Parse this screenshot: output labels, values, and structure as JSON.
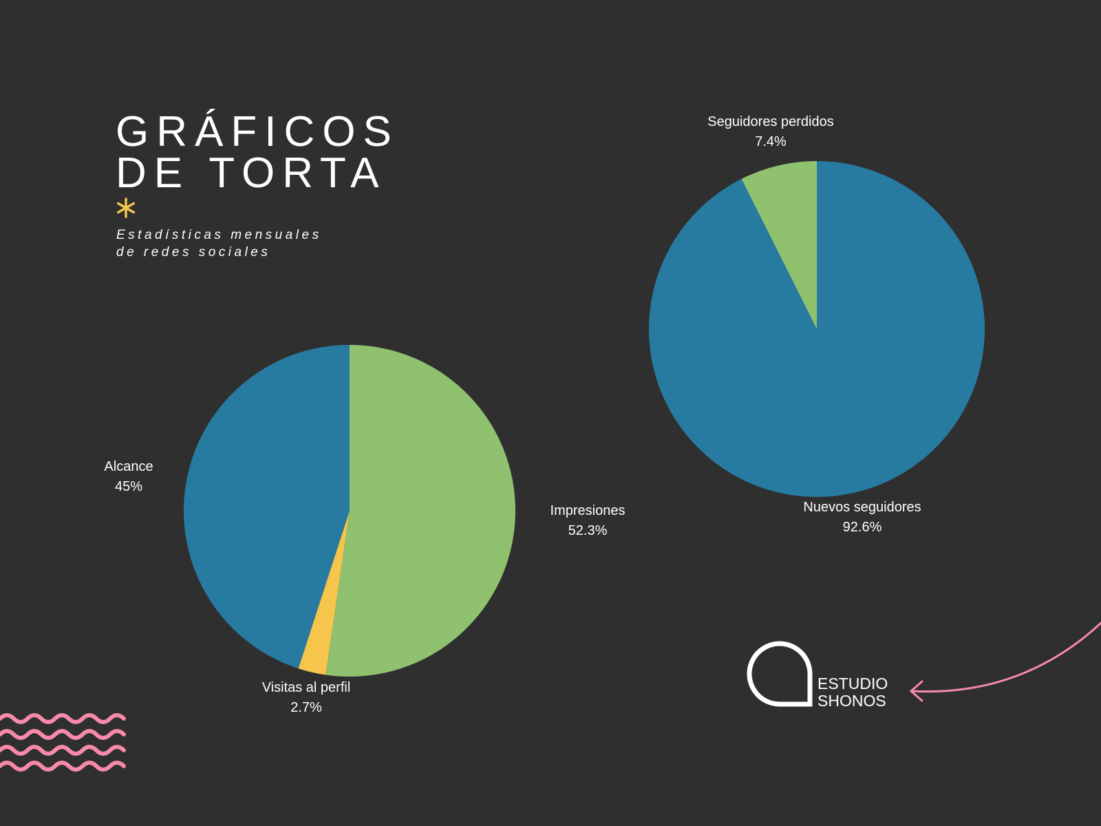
{
  "header": {
    "title_lines": [
      "GRÁFICOS",
      "DE TORTA"
    ],
    "subtitle_lines": [
      "Estadísticas mensuales",
      "de redes sociales"
    ]
  },
  "chart_data": [
    {
      "type": "pie",
      "categories": [
        "Impresiones",
        "Visitas al perfil",
        "Alcance"
      ],
      "values": [
        52.3,
        2.7,
        45
      ],
      "value_labels": [
        "52.3%",
        "2.7%",
        "45%"
      ],
      "colors": [
        "#90c16e",
        "#f5c54c",
        "#277ba0"
      ]
    },
    {
      "type": "pie",
      "categories": [
        "Nuevos seguidores",
        "Seguidores perdidos"
      ],
      "values": [
        92.6,
        7.4
      ],
      "value_labels": [
        "92.6%",
        "7.4%"
      ],
      "colors": [
        "#277ba0",
        "#90c16e"
      ]
    }
  ],
  "logo": {
    "lines": [
      "ESTUDIO",
      "SHONOS"
    ]
  }
}
